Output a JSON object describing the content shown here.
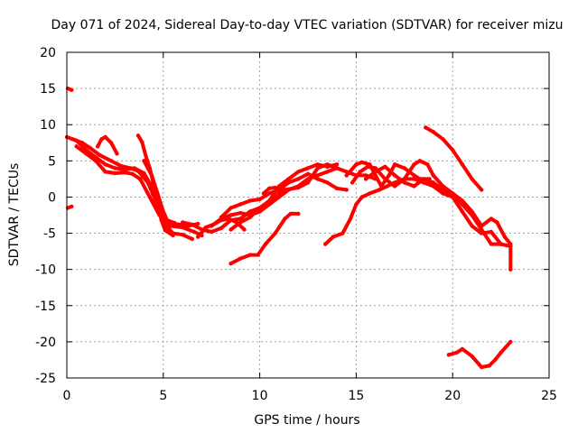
{
  "chart_data": {
    "type": "scatter",
    "title": "Day 071 of 2024, Sidereal Day-to-day VTEC variation (SDTVAR) for receiver mizu",
    "xlabel": "GPS time / hours",
    "ylabel": "SDTVAR / TECUs",
    "xlim": [
      0,
      25
    ],
    "ylim": [
      -25,
      20
    ],
    "xticks": [
      0,
      5,
      10,
      15,
      20,
      25
    ],
    "yticks": [
      20,
      15,
      10,
      5,
      0,
      -5,
      -10,
      -15,
      -20,
      -25
    ],
    "grid": true,
    "color": "#ff0000",
    "series": [
      {
        "name": "s1",
        "points": [
          [
            0.05,
            15.0
          ],
          [
            0.25,
            14.8
          ]
        ]
      },
      {
        "name": "s2",
        "points": [
          [
            0.05,
            -1.5
          ],
          [
            0.25,
            -1.3
          ]
        ]
      },
      {
        "name": "s3",
        "points": [
          [
            0.0,
            8.3
          ],
          [
            0.5,
            7.8
          ],
          [
            1.0,
            6.5
          ],
          [
            1.5,
            5.5
          ],
          [
            2.0,
            4.5
          ],
          [
            2.5,
            4.0
          ],
          [
            3.0,
            3.8
          ],
          [
            3.5,
            4.0
          ],
          [
            4.0,
            3.3
          ],
          [
            4.5,
            1.0
          ],
          [
            4.8,
            -1.5
          ],
          [
            5.0,
            -3.5
          ],
          [
            5.5,
            -5.0
          ],
          [
            6.0,
            -5.2
          ],
          [
            6.5,
            -5.8
          ]
        ]
      },
      {
        "name": "s4",
        "points": [
          [
            0.3,
            8.0
          ],
          [
            0.8,
            7.5
          ],
          [
            1.2,
            6.8
          ],
          [
            1.7,
            5.8
          ],
          [
            2.3,
            5.0
          ],
          [
            2.8,
            4.3
          ],
          [
            3.3,
            4.0
          ],
          [
            3.7,
            3.6
          ],
          [
            4.2,
            2.0
          ],
          [
            4.6,
            -0.5
          ],
          [
            5.0,
            -2.8
          ],
          [
            5.4,
            -4.0
          ],
          [
            6.0,
            -4.2
          ],
          [
            6.6,
            -4.8
          ],
          [
            7.0,
            -5.3
          ]
        ]
      },
      {
        "name": "s5",
        "points": [
          [
            0.5,
            7.0
          ],
          [
            1.0,
            6.0
          ],
          [
            1.5,
            5.0
          ],
          [
            2.0,
            3.5
          ],
          [
            2.5,
            3.3
          ],
          [
            3.0,
            3.4
          ],
          [
            3.4,
            3.2
          ],
          [
            3.8,
            2.5
          ],
          [
            4.3,
            0.0
          ],
          [
            4.8,
            -2.5
          ],
          [
            5.3,
            -3.5
          ],
          [
            5.8,
            -3.8
          ],
          [
            6.3,
            -4.0
          ],
          [
            6.8,
            -3.7
          ]
        ]
      },
      {
        "name": "s6",
        "points": [
          [
            1.6,
            7.0
          ],
          [
            1.8,
            8.0
          ],
          [
            2.0,
            8.3
          ],
          [
            2.3,
            7.5
          ],
          [
            2.6,
            6.0
          ]
        ]
      },
      {
        "name": "s7",
        "points": [
          [
            3.7,
            8.5
          ],
          [
            3.9,
            7.6
          ],
          [
            4.1,
            5.6
          ],
          [
            4.3,
            4.0
          ],
          [
            4.5,
            1.8
          ],
          [
            4.7,
            -0.8
          ],
          [
            4.9,
            -3.2
          ],
          [
            5.1,
            -4.6
          ],
          [
            5.5,
            -5.3
          ]
        ]
      },
      {
        "name": "s8",
        "points": [
          [
            4.0,
            5.0
          ],
          [
            4.4,
            3.0
          ],
          [
            4.7,
            0.5
          ],
          [
            5.0,
            -2.0
          ],
          [
            5.2,
            -3.2
          ],
          [
            5.6,
            -3.6
          ]
        ]
      },
      {
        "name": "s9",
        "points": [
          [
            6.0,
            -3.5
          ],
          [
            6.5,
            -3.8
          ],
          [
            7.0,
            -4.5
          ],
          [
            7.5,
            -4.8
          ],
          [
            8.0,
            -4.3
          ],
          [
            8.5,
            -3.2
          ],
          [
            9.0,
            -3.0
          ],
          [
            9.5,
            -2.0
          ],
          [
            10.0,
            -1.5
          ],
          [
            10.6,
            -0.8
          ],
          [
            11.0,
            0.0
          ],
          [
            11.5,
            1.0
          ],
          [
            12.0,
            1.5
          ],
          [
            12.5,
            2.5
          ],
          [
            13.0,
            3.0
          ],
          [
            13.5,
            3.5
          ],
          [
            14.0,
            4.0
          ]
        ]
      },
      {
        "name": "s10",
        "points": [
          [
            6.8,
            -5.5
          ],
          [
            7.2,
            -4.2
          ],
          [
            7.6,
            -3.8
          ],
          [
            8.0,
            -3.2
          ],
          [
            8.4,
            -3.0
          ],
          [
            8.8,
            -3.5
          ],
          [
            9.2,
            -4.5
          ]
        ]
      },
      {
        "name": "s11",
        "points": [
          [
            7.5,
            -4.0
          ],
          [
            8.0,
            -3.0
          ],
          [
            8.5,
            -2.5
          ],
          [
            9.0,
            -2.2
          ],
          [
            9.5,
            -2.5
          ],
          [
            10.0,
            -2.0
          ],
          [
            10.5,
            -1.0
          ],
          [
            11.0,
            0.5
          ],
          [
            11.3,
            1.0
          ],
          [
            12.0,
            1.3
          ],
          [
            12.5,
            2.0
          ],
          [
            13.0,
            4.0
          ],
          [
            13.5,
            4.5
          ],
          [
            14.0,
            4.0
          ],
          [
            14.5,
            3.5
          ],
          [
            15.0,
            3.0
          ],
          [
            15.5,
            3.0
          ],
          [
            16.0,
            2.5
          ]
        ]
      },
      {
        "name": "s12",
        "points": [
          [
            8.0,
            -2.8
          ],
          [
            8.5,
            -1.5
          ],
          [
            9.0,
            -1.0
          ],
          [
            9.5,
            -0.5
          ],
          [
            10.0,
            -0.3
          ],
          [
            10.5,
            0.5
          ],
          [
            11.0,
            1.0
          ],
          [
            11.5,
            2.0
          ],
          [
            12.0,
            2.5
          ],
          [
            12.5,
            3.2
          ],
          [
            13.0,
            2.5
          ],
          [
            13.5,
            2.0
          ],
          [
            14.0,
            1.2
          ],
          [
            14.5,
            1.0
          ]
        ]
      },
      {
        "name": "s13",
        "points": [
          [
            8.5,
            -4.5
          ],
          [
            9.0,
            -3.5
          ],
          [
            9.5,
            -2.8
          ],
          [
            10.0,
            -1.5
          ],
          [
            10.5,
            -0.5
          ],
          [
            11.0,
            1.5
          ],
          [
            11.5,
            2.5
          ],
          [
            12.0,
            3.5
          ],
          [
            12.5,
            4.0
          ],
          [
            13.0,
            4.5
          ],
          [
            13.5,
            4.2
          ],
          [
            14.0,
            4.5
          ]
        ]
      },
      {
        "name": "s14",
        "points": [
          [
            10.2,
            0.5
          ],
          [
            10.5,
            1.2
          ],
          [
            10.8,
            1.3
          ]
        ]
      },
      {
        "name": "s15",
        "points": [
          [
            8.5,
            -9.2
          ],
          [
            9.0,
            -8.5
          ],
          [
            9.5,
            -8.0
          ],
          [
            9.9,
            -8.0
          ],
          [
            10.3,
            -6.5
          ],
          [
            10.8,
            -5.0
          ],
          [
            11.3,
            -3.0
          ],
          [
            11.6,
            -2.3
          ],
          [
            12.0,
            -2.3
          ]
        ]
      },
      {
        "name": "s16",
        "points": [
          [
            13.4,
            -6.5
          ],
          [
            13.8,
            -5.5
          ],
          [
            14.3,
            -5.0
          ],
          [
            14.7,
            -3.0
          ],
          [
            15.0,
            -1.0
          ],
          [
            15.3,
            0.0
          ],
          [
            15.7,
            0.5
          ],
          [
            16.2,
            1.0
          ],
          [
            16.6,
            1.5
          ],
          [
            17.0,
            2.0
          ],
          [
            17.5,
            2.5
          ],
          [
            18.0,
            2.5
          ],
          [
            18.5,
            2.0
          ],
          [
            19.0,
            1.5
          ],
          [
            19.5,
            0.5
          ],
          [
            20.0,
            0.0
          ],
          [
            20.5,
            -2.0
          ],
          [
            21.0,
            -4.0
          ],
          [
            21.5,
            -5.0
          ],
          [
            22.0,
            -4.8
          ],
          [
            22.5,
            -6.5
          ],
          [
            23.0,
            -6.8
          ]
        ]
      },
      {
        "name": "s17",
        "points": [
          [
            14.5,
            3.0
          ],
          [
            15.0,
            4.5
          ],
          [
            15.3,
            4.8
          ],
          [
            15.7,
            4.5
          ],
          [
            16.0,
            3.0
          ],
          [
            16.3,
            1.5
          ],
          [
            16.7,
            3.0
          ],
          [
            17.0,
            4.5
          ],
          [
            17.5,
            4.0
          ],
          [
            18.0,
            3.0
          ],
          [
            18.3,
            2.5
          ],
          [
            18.8,
            2.5
          ]
        ]
      },
      {
        "name": "s18",
        "points": [
          [
            14.8,
            2.0
          ],
          [
            15.2,
            3.5
          ],
          [
            15.6,
            4.2
          ],
          [
            16.0,
            4.0
          ],
          [
            16.5,
            2.5
          ],
          [
            17.0,
            1.5
          ],
          [
            17.5,
            2.5
          ],
          [
            18.0,
            4.5
          ],
          [
            18.3,
            5.0
          ],
          [
            18.7,
            4.5
          ],
          [
            19.0,
            3.0
          ],
          [
            19.5,
            1.5
          ],
          [
            20.0,
            0.5
          ],
          [
            20.5,
            -0.5
          ],
          [
            21.0,
            -2.0
          ],
          [
            21.5,
            -4.0
          ],
          [
            22.0,
            -3.0
          ],
          [
            22.3,
            -3.5
          ],
          [
            22.7,
            -5.5
          ],
          [
            23.0,
            -6.5
          ],
          [
            23.0,
            -10.0
          ]
        ]
      },
      {
        "name": "s19",
        "points": [
          [
            15.5,
            2.5
          ],
          [
            16.0,
            3.5
          ],
          [
            16.5,
            4.2
          ],
          [
            17.0,
            3.0
          ],
          [
            17.5,
            2.0
          ],
          [
            18.0,
            1.5
          ],
          [
            18.5,
            2.5
          ],
          [
            19.0,
            2.0
          ],
          [
            19.5,
            1.0
          ],
          [
            20.0,
            0.5
          ],
          [
            20.5,
            -1.0
          ],
          [
            21.0,
            -2.5
          ],
          [
            21.5,
            -4.5
          ],
          [
            22.0,
            -6.5
          ],
          [
            22.5,
            -6.5
          ]
        ]
      },
      {
        "name": "s20",
        "points": [
          [
            18.6,
            9.6
          ],
          [
            19.0,
            9.0
          ],
          [
            19.5,
            8.0
          ],
          [
            20.0,
            6.5
          ],
          [
            20.5,
            4.5
          ],
          [
            21.0,
            2.5
          ],
          [
            21.5,
            1.0
          ]
        ]
      },
      {
        "name": "s21",
        "points": [
          [
            19.8,
            -21.8
          ],
          [
            20.2,
            -21.5
          ],
          [
            20.5,
            -21.0
          ],
          [
            21.0,
            -22.0
          ],
          [
            21.5,
            -23.5
          ],
          [
            21.9,
            -23.3
          ],
          [
            22.2,
            -22.5
          ],
          [
            22.5,
            -21.5
          ],
          [
            23.0,
            -20.0
          ]
        ]
      }
    ]
  }
}
